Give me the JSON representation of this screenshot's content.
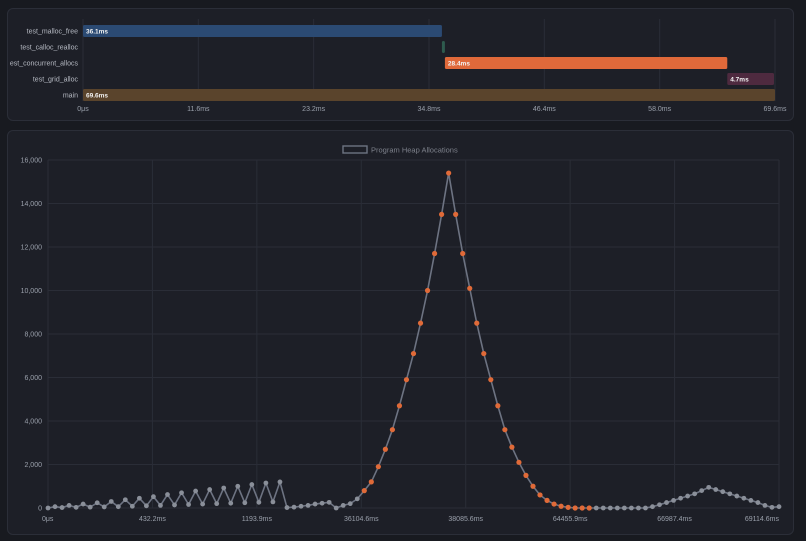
{
  "timeline": {
    "chart_data": {
      "type": "bar",
      "orientation": "horizontal-gantt",
      "unit": "ms",
      "xlim": [
        0,
        69.6
      ],
      "x_tick_labels": [
        "0μs",
        "11.6ms",
        "23.2ms",
        "34.8ms",
        "46.4ms",
        "58.0ms",
        "69.6ms"
      ],
      "rows": [
        {
          "name": "test_malloc_free",
          "start": 0,
          "duration": 36.1,
          "label": "36.1ms",
          "color": "#2b4a73"
        },
        {
          "name": "test_calloc_realloc",
          "start": 36.1,
          "duration": 0.3,
          "label": "",
          "color": "#2e5b4e"
        },
        {
          "name": "est_concurrent_allocs",
          "start": 36.4,
          "duration": 28.4,
          "label": "28.4ms",
          "color": "#e0693a"
        },
        {
          "name": "test_grid_alloc",
          "start": 64.8,
          "duration": 4.7,
          "label": "4.7ms",
          "color": "#4e2a3f"
        },
        {
          "name": "main",
          "start": 0,
          "duration": 69.6,
          "label": "69.6ms",
          "color": "#5a442c"
        }
      ]
    }
  },
  "heap": {
    "chart_data": {
      "type": "line",
      "legend": {
        "label": "Program Heap Allocations",
        "position": "top-center"
      },
      "ylim": [
        0,
        16000
      ],
      "y_ticks": [
        0,
        2000,
        4000,
        6000,
        8000,
        10000,
        12000,
        14000,
        16000
      ],
      "y_tick_labels": [
        "0",
        "2,000",
        "4,000",
        "6,000",
        "8,000",
        "10,000",
        "12,000",
        "14,000",
        "16,000"
      ],
      "x_tick_labels": [
        "0μs",
        "432.2ms",
        "1193.9ms",
        "36104.6ms",
        "38085.6ms",
        "64455.9ms",
        "66987.4ms",
        "69114.6ms"
      ],
      "grid": true,
      "line_color": "#6d7382",
      "point_colors": {
        "default": "#8a8f99",
        "highlight": "#e06a38"
      },
      "highlight_range": [
        45,
        77
      ],
      "y": [
        0,
        60,
        20,
        120,
        30,
        180,
        40,
        240,
        50,
        300,
        60,
        380,
        80,
        450,
        100,
        520,
        120,
        620,
        140,
        700,
        160,
        780,
        180,
        850,
        200,
        920,
        220,
        1000,
        240,
        1080,
        260,
        1150,
        280,
        1200,
        20,
        40,
        80,
        120,
        180,
        220,
        260,
        0,
        120,
        200,
        420,
        800,
        1200,
        1900,
        2700,
        3600,
        4700,
        5900,
        7100,
        8500,
        10000,
        11700,
        13500,
        15400,
        13500,
        11700,
        10100,
        8500,
        7100,
        5900,
        4700,
        3600,
        2800,
        2100,
        1500,
        1000,
        600,
        350,
        180,
        80,
        30,
        0,
        0,
        0,
        0,
        0,
        0,
        0,
        0,
        0,
        0,
        0,
        60,
        150,
        250,
        350,
        450,
        550,
        650,
        800,
        950,
        850,
        750,
        650,
        550,
        450,
        350,
        250,
        120,
        30,
        60
      ]
    }
  }
}
